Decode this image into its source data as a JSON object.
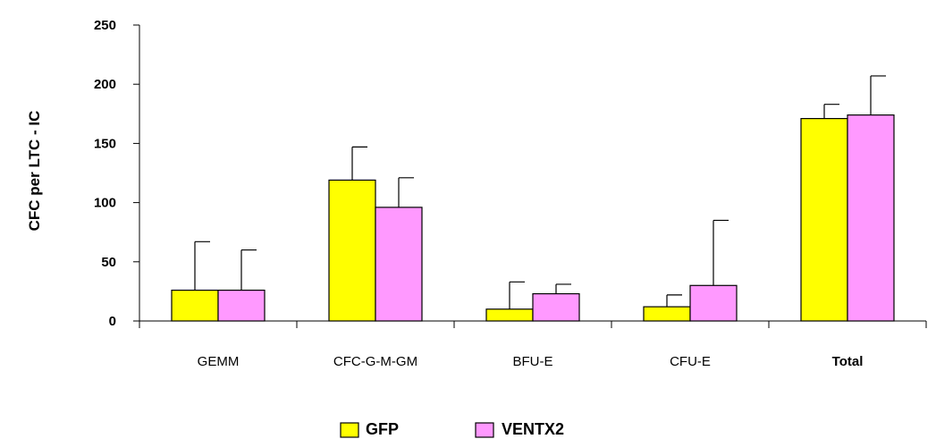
{
  "chart_data": {
    "type": "bar",
    "ylabel": "CFC per LTC - IC",
    "xlabel": "",
    "ylim": [
      0,
      250
    ],
    "yticks": [
      0,
      50,
      100,
      150,
      200,
      250
    ],
    "categories": [
      "GEMM",
      "CFC-G-M-GM",
      "BFU-E",
      "CFU-E",
      "Total"
    ],
    "bold_categories": [
      "Total"
    ],
    "series": [
      {
        "name": "GFP",
        "color": "#FFFF00",
        "values": [
          26,
          119,
          10,
          12,
          171
        ],
        "error": [
          41,
          28,
          23,
          10,
          12
        ]
      },
      {
        "name": "VENTX2",
        "color": "#FF99FF",
        "values": [
          26,
          96,
          23,
          30,
          174
        ],
        "error": [
          34,
          25,
          8,
          55,
          33
        ]
      }
    ],
    "legend_position": "bottom-center",
    "grid": false
  }
}
